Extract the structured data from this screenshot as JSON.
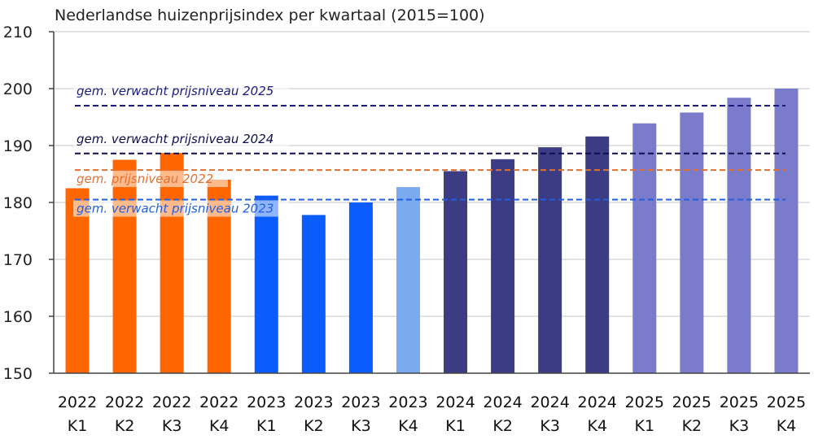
{
  "chart_data": {
    "type": "bar",
    "title": "Nederlandse huizenprijsindex per kwartaal (2015=100)",
    "xlabel": "",
    "ylabel": "",
    "ylim": [
      150,
      210
    ],
    "yticks": [
      150,
      160,
      170,
      180,
      190,
      200,
      210
    ],
    "grid": true,
    "categories": [
      [
        "2022",
        "K1"
      ],
      [
        "2022",
        "K2"
      ],
      [
        "2022",
        "K3"
      ],
      [
        "2022",
        "K4"
      ],
      [
        "2023",
        "K1"
      ],
      [
        "2023",
        "K2"
      ],
      [
        "2023",
        "K3"
      ],
      [
        "2023",
        "K4"
      ],
      [
        "2024",
        "K1"
      ],
      [
        "2024",
        "K2"
      ],
      [
        "2024",
        "K3"
      ],
      [
        "2024",
        "K4"
      ],
      [
        "2025",
        "K1"
      ],
      [
        "2025",
        "K2"
      ],
      [
        "2025",
        "K3"
      ],
      [
        "2025",
        "K4"
      ]
    ],
    "values": [
      182.5,
      187.5,
      188.7,
      184.0,
      181.2,
      177.8,
      180.0,
      182.7,
      185.5,
      187.6,
      189.7,
      191.6,
      193.9,
      195.8,
      198.4,
      200.0
    ],
    "bar_colors": [
      "#ff6600",
      "#ff6600",
      "#ff6600",
      "#ff6600",
      "#0a5cff",
      "#0a5cff",
      "#0a5cff",
      "#7aaaf0",
      "#3c3c85",
      "#3c3c85",
      "#3c3c85",
      "#3c3c85",
      "#7b7bcc",
      "#7b7bcc",
      "#7b7bcc",
      "#7b7bcc"
    ],
    "reference_lines": [
      {
        "label": "gem. verwacht prijsniveau 2025",
        "value": 197.0,
        "color": "#1a1a80"
      },
      {
        "label": "gem. verwacht prijsniveau 2024",
        "value": 188.6,
        "color": "#0d0d50"
      },
      {
        "label": "gem. prijsniveau 2022",
        "value": 185.7,
        "color": "#e07030"
      },
      {
        "label": "gem. verwacht prijsniveau 2023",
        "value": 180.5,
        "color": "#2060e0"
      }
    ]
  }
}
